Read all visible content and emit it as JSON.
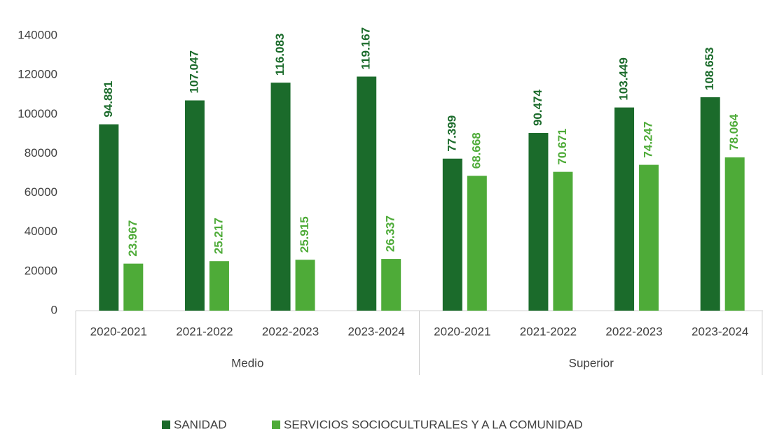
{
  "chart_data": {
    "type": "bar",
    "categories": [
      "2020-2021",
      "2021-2022",
      "2022-2023",
      "2023-2024",
      "2020-2021",
      "2021-2022",
      "2022-2023",
      "2023-2024"
    ],
    "groups": [
      "Medio",
      "Superior"
    ],
    "series": [
      {
        "name": "SANIDAD",
        "color": "#1b6b2b",
        "values": [
          94881,
          107047,
          116083,
          119167,
          77399,
          90474,
          103449,
          108653
        ],
        "value_labels": [
          "94.881",
          "107.047",
          "116.083",
          "119.167",
          "77.399",
          "90.474",
          "103.449",
          "108.653"
        ]
      },
      {
        "name": "SERVICIOS SOCIOCULTURALES Y A LA COMUNIDAD",
        "color": "#4eab38",
        "values": [
          23967,
          25217,
          25915,
          26337,
          68668,
          70671,
          74247,
          78064
        ],
        "value_labels": [
          "23.967",
          "25.217",
          "25.915",
          "26.337",
          "68.668",
          "70.671",
          "74.247",
          "78.064"
        ]
      }
    ],
    "ylim": [
      0,
      140000
    ],
    "yticks": [
      0,
      20000,
      40000,
      60000,
      80000,
      100000,
      120000,
      140000
    ],
    "grid": false,
    "legend": "bottom"
  }
}
